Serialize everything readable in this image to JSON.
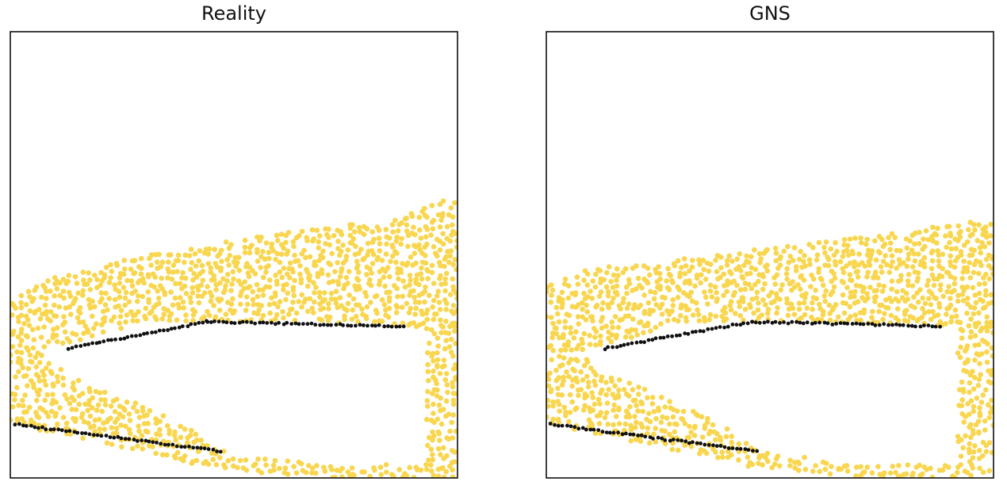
{
  "colors": {
    "fluid": "#f9d64f",
    "boundary": "#111111",
    "frame": "#000000",
    "background": "#ffffff"
  },
  "chart_data": [
    {
      "type": "scatter",
      "title": "Reality",
      "xlabel": "",
      "ylabel": "",
      "grid": false,
      "xlim": [
        0,
        1
      ],
      "ylim": [
        0,
        1
      ],
      "series": [
        {
          "role": "fluid-particles",
          "color": "#f9d64f",
          "regions": {
            "upper_band": {
              "bottom": [
                [
                  0.0,
                  0.35
                ],
                [
                  0.1,
                  0.29
                ],
                [
                  0.3,
                  0.35
                ],
                [
                  0.6,
                  0.35
                ],
                [
                  0.9,
                  0.34
                ],
                [
                  1.0,
                  0.33
                ]
              ],
              "top": [
                [
                  0.0,
                  0.4
                ],
                [
                  0.1,
                  0.45
                ],
                [
                  0.3,
                  0.5
                ],
                [
                  0.6,
                  0.55
                ],
                [
                  0.85,
                  0.58
                ],
                [
                  0.96,
                  0.62
                ],
                [
                  1.0,
                  0.63
                ]
              ]
            },
            "lower_band": {
              "bottom": [
                [
                  0.0,
                  0.12
                ],
                [
                  0.2,
                  0.08
                ],
                [
                  0.45,
                  0.02
                ],
                [
                  0.7,
                  0.0
                ],
                [
                  1.0,
                  0.0
                ]
              ],
              "top": [
                [
                  0.0,
                  0.3
                ],
                [
                  0.05,
                  0.28
                ],
                [
                  0.1,
                  0.25
                ],
                [
                  0.2,
                  0.2
                ],
                [
                  0.35,
                  0.14
                ],
                [
                  0.5,
                  0.05
                ],
                [
                  0.7,
                  0.03
                ],
                [
                  0.95,
                  0.03
                ],
                [
                  1.0,
                  0.05
                ]
              ]
            },
            "right_column": {
              "bottom": [
                [
                  0.93,
                  0.0
                ],
                [
                  1.0,
                  0.0
                ]
              ],
              "top": [
                [
                  0.93,
                  0.35
                ],
                [
                  1.0,
                  0.45
                ]
              ]
            },
            "left_column": {
              "bottom": [
                [
                  0.0,
                  0.12
                ],
                [
                  0.08,
                  0.12
                ]
              ],
              "top": [
                [
                  0.0,
                  0.38
                ],
                [
                  0.08,
                  0.32
                ]
              ]
            }
          }
        },
        {
          "role": "wall-particles",
          "color": "#111111",
          "segments": [
            [
              [
                0.13,
                0.29
              ],
              [
                0.44,
                0.35
              ]
            ],
            [
              [
                0.44,
                0.35
              ],
              [
                0.88,
                0.34
              ]
            ],
            [
              [
                0.01,
                0.12
              ],
              [
                0.47,
                0.06
              ]
            ]
          ]
        }
      ]
    },
    {
      "type": "scatter",
      "title": "GNS",
      "xlabel": "",
      "ylabel": "",
      "grid": false,
      "xlim": [
        0,
        1
      ],
      "ylim": [
        0,
        1
      ],
      "series": [
        {
          "role": "fluid-particles",
          "color": "#f9d64f",
          "regions": {
            "upper_band": {
              "bottom": [
                [
                  0.0,
                  0.35
                ],
                [
                  0.12,
                  0.29
                ],
                [
                  0.3,
                  0.35
                ],
                [
                  0.6,
                  0.35
                ],
                [
                  0.9,
                  0.34
                ],
                [
                  1.0,
                  0.33
                ]
              ],
              "top": [
                [
                  0.0,
                  0.43
                ],
                [
                  0.1,
                  0.47
                ],
                [
                  0.3,
                  0.49
                ],
                [
                  0.6,
                  0.53
                ],
                [
                  0.85,
                  0.56
                ],
                [
                  1.0,
                  0.58
                ]
              ]
            },
            "lower_band": {
              "bottom": [
                [
                  0.0,
                  0.12
                ],
                [
                  0.25,
                  0.07
                ],
                [
                  0.48,
                  0.02
                ],
                [
                  0.7,
                  0.0
                ],
                [
                  1.0,
                  0.0
                ]
              ],
              "top": [
                [
                  0.0,
                  0.3
                ],
                [
                  0.05,
                  0.28
                ],
                [
                  0.12,
                  0.24
                ],
                [
                  0.22,
                  0.2
                ],
                [
                  0.35,
                  0.14
                ],
                [
                  0.5,
                  0.06
                ],
                [
                  0.7,
                  0.03
                ],
                [
                  0.95,
                  0.03
                ],
                [
                  1.0,
                  0.05
                ]
              ]
            },
            "right_column": {
              "bottom": [
                [
                  0.92,
                  0.0
                ],
                [
                  1.0,
                  0.0
                ]
              ],
              "top": [
                [
                  0.92,
                  0.35
                ],
                [
                  1.0,
                  0.4
                ]
              ]
            },
            "left_column": {
              "bottom": [
                [
                  0.0,
                  0.12
                ],
                [
                  0.1,
                  0.12
                ]
              ],
              "top": [
                [
                  0.0,
                  0.4
                ],
                [
                  0.1,
                  0.32
                ]
              ]
            }
          }
        },
        {
          "role": "wall-particles",
          "color": "#111111",
          "segments": [
            [
              [
                0.13,
                0.29
              ],
              [
                0.46,
                0.35
              ]
            ],
            [
              [
                0.46,
                0.35
              ],
              [
                0.88,
                0.34
              ]
            ],
            [
              [
                0.01,
                0.12
              ],
              [
                0.47,
                0.06
              ]
            ]
          ]
        }
      ]
    }
  ]
}
